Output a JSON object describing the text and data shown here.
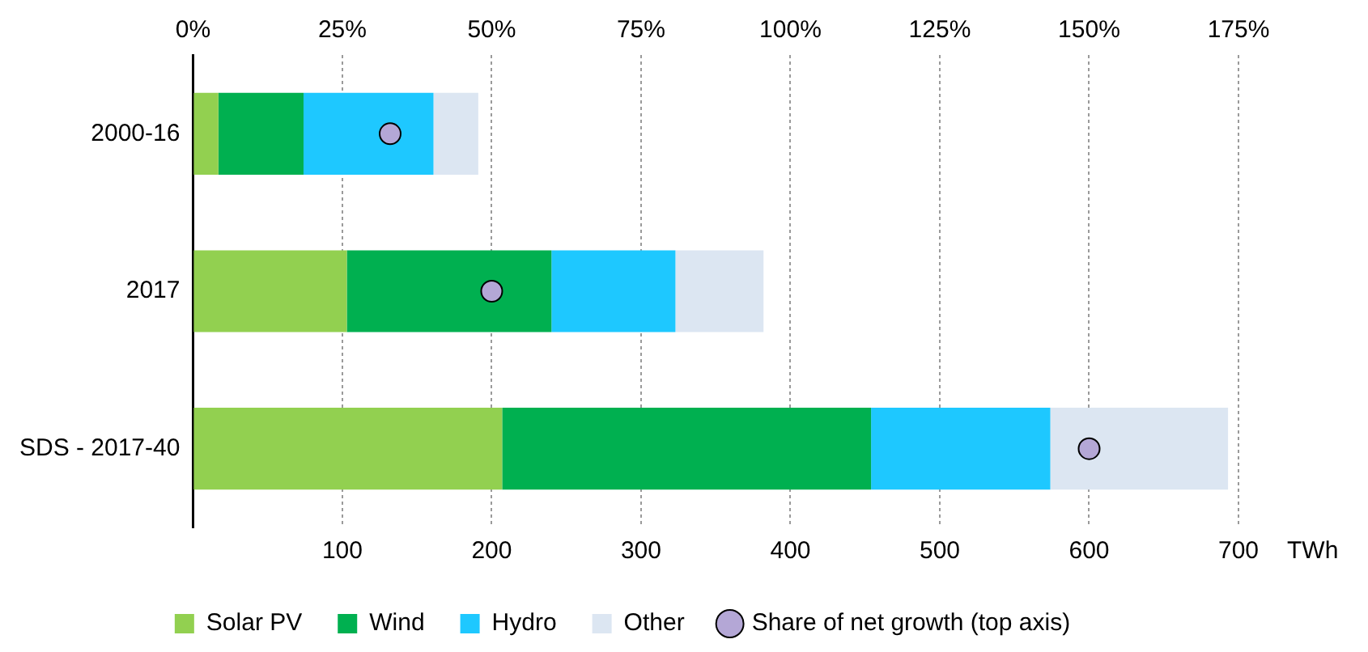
{
  "chart_data": {
    "type": "bar",
    "orientation": "horizontal",
    "stacked": true,
    "categories": [
      "2000-16",
      "2017",
      "SDS - 2017-40"
    ],
    "series": [
      {
        "name": "Solar PV",
        "color": "#92d050",
        "values": [
          17,
          103,
          207
        ]
      },
      {
        "name": "Wind",
        "color": "#00b050",
        "values": [
          57,
          137,
          247
        ]
      },
      {
        "name": "Hydro",
        "color": "#1ec8ff",
        "values": [
          87,
          83,
          120
        ]
      },
      {
        "name": "Other",
        "color": "#dce6f2",
        "values": [
          30,
          59,
          119
        ]
      },
      {
        "name": "Share of net growth (top axis)",
        "type": "scatter",
        "axis": "x2",
        "color": "#b4a7d6",
        "values": [
          33,
          50,
          150
        ]
      }
    ],
    "xlabel": "TWh",
    "xlim": [
      0,
      700
    ],
    "xticks": [
      {
        "value": 0,
        "label": null
      },
      100,
      200,
      300,
      400,
      500,
      600,
      700
    ],
    "x2lim": [
      0,
      175
    ],
    "x2ticks": [
      {
        "value": 0,
        "label": "0%"
      },
      {
        "value": 25,
        "label": "25%"
      },
      {
        "value": 50,
        "label": "50%"
      },
      {
        "value": 75,
        "label": "75%"
      },
      {
        "value": 100,
        "label": "100%"
      },
      {
        "value": 125,
        "label": "125%"
      },
      {
        "value": 150,
        "label": "150%"
      },
      {
        "value": 175,
        "label": "175%"
      }
    ],
    "grid": "x",
    "legend": "bottom",
    "marker": "circle"
  }
}
